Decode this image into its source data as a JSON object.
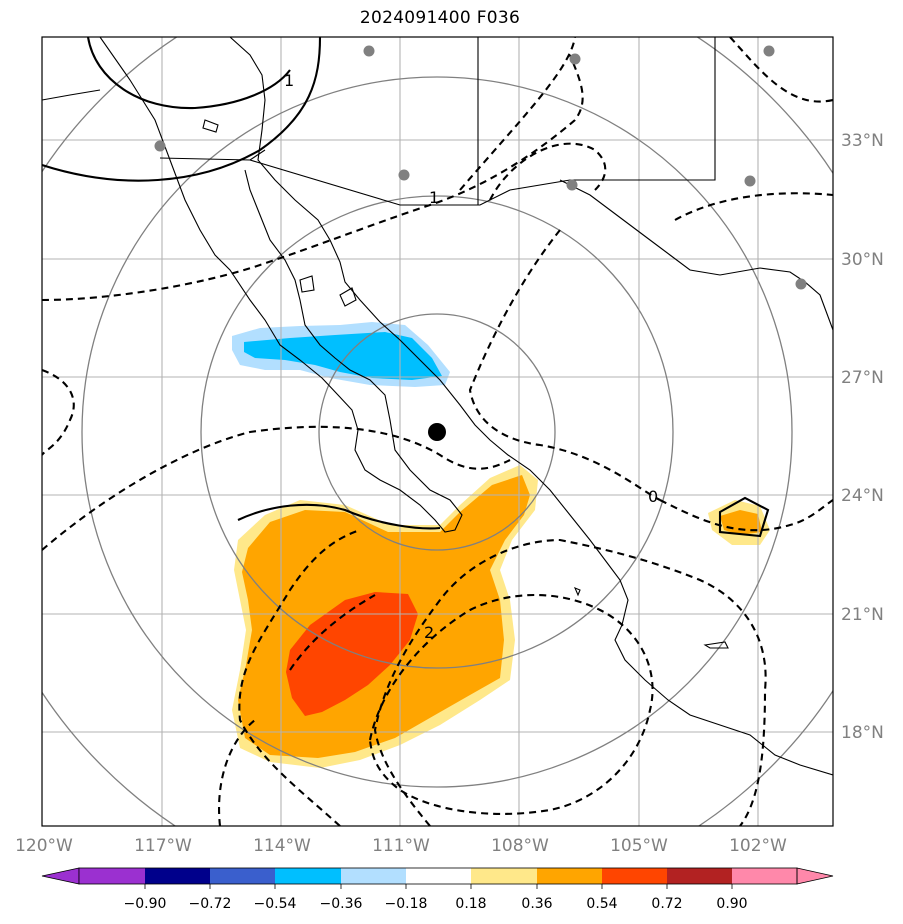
{
  "title": "2024091400 F036",
  "map": {
    "lon_ticks": [
      "120°W",
      "117°W",
      "114°W",
      "111°W",
      "108°W",
      "105°W",
      "102°W"
    ],
    "lat_ticks": [
      "33°N",
      "30°N",
      "27°N",
      "24°N",
      "21°N",
      "18°N"
    ],
    "contour_labels": [
      "1",
      "1",
      "0",
      "2"
    ],
    "colors": {
      "neg_090": "#9b30d0",
      "neg_072": "#00008b",
      "neg_054": "#3a5fcd",
      "neg_036": "#00bfff",
      "neg_018": "#b2dfff",
      "neutral": "#ffffff",
      "pos_018": "#ffe88a",
      "pos_036": "#ffa500",
      "pos_054": "#ff4500",
      "pos_072": "#b22222",
      "pos_090": "#ff88aa"
    }
  },
  "colorbar": {
    "labels": [
      "−0.90",
      "−0.72",
      "−0.54",
      "−0.36",
      "−0.18",
      "0.18",
      "0.36",
      "0.54",
      "0.72",
      "0.90"
    ]
  }
}
